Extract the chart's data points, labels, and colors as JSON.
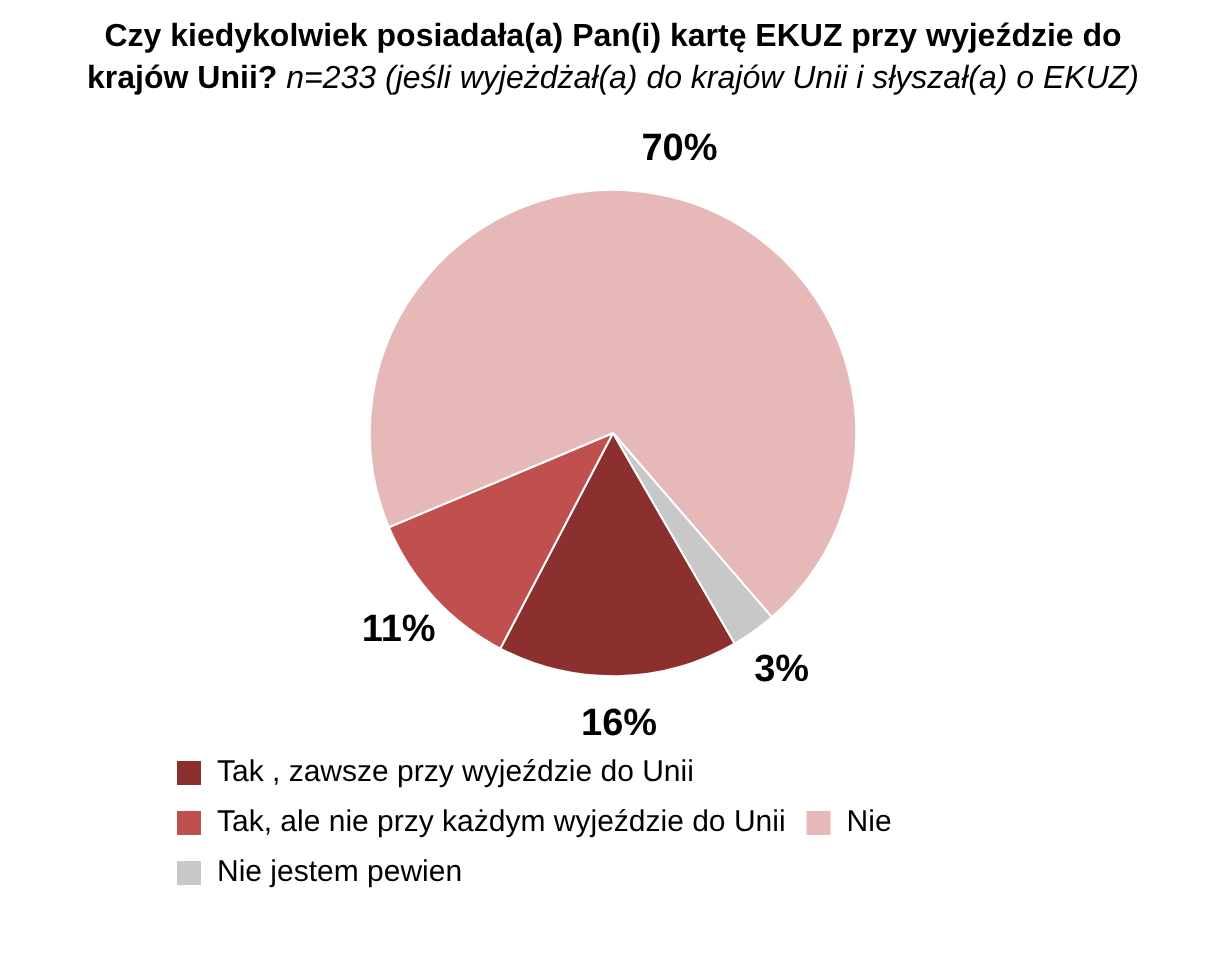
{
  "chart_data": {
    "type": "pie",
    "title": "Czy kiedykolwiek posiadała(a) Pan(i) kartę EKUZ przy wyjeździe do krajów Unii?",
    "subtitle": "n=233 (jeśli wyjeżdżał(a) do krajów Unii i słyszał(a)  o EKUZ)",
    "categories": [
      "Tak , zawsze przy wyjeździe do Unii",
      "Tak, ale nie przy każdym wyjeździe do Unii",
      "Nie",
      "Nie jestem pewien"
    ],
    "values": [
      16,
      11,
      70,
      3
    ],
    "value_labels": [
      "16%",
      "11%",
      "70%",
      "3%"
    ],
    "colors": [
      "#8c2f2f",
      "#c0504d",
      "#e6b9b8",
      "#c8c8c8"
    ],
    "legend": "bottom"
  }
}
